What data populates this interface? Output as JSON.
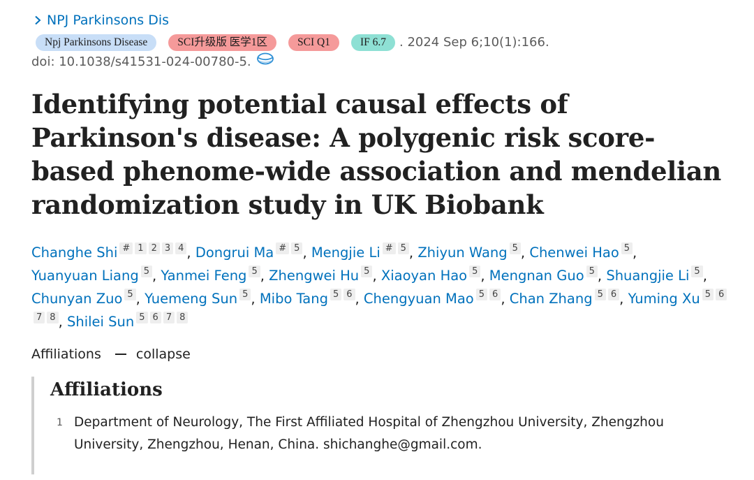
{
  "journal_link": "NPJ Parkinsons Dis",
  "tags": {
    "journal": "Npj Parkinsons Disease",
    "sci_upgrade": "SCI升级版 医学1区",
    "sci_q": "SCI Q1",
    "impact_factor": "IF 6.7"
  },
  "citation": ". 2024 Sep 6;10(1):166.",
  "doi": "doi: 10.1038/s41531-024-00780-5.",
  "title": "Identifying potential causal effects of Parkinson's disease: A polygenic risk score-based phenome-wide association and mendelian randomization study in UK Biobank",
  "authors": [
    {
      "name": "Changhe Shi",
      "refs": [
        "#",
        "1",
        "2",
        "3",
        "4"
      ]
    },
    {
      "name": "Dongrui Ma",
      "refs": [
        "#",
        "5"
      ]
    },
    {
      "name": "Mengjie Li",
      "refs": [
        "#",
        "5"
      ]
    },
    {
      "name": "Zhiyun Wang",
      "refs": [
        "5"
      ]
    },
    {
      "name": "Chenwei Hao",
      "refs": [
        "5"
      ]
    },
    {
      "name": "Yuanyuan Liang",
      "refs": [
        "5"
      ]
    },
    {
      "name": "Yanmei Feng",
      "refs": [
        "5"
      ]
    },
    {
      "name": "Zhengwei Hu",
      "refs": [
        "5"
      ]
    },
    {
      "name": "Xiaoyan Hao",
      "refs": [
        "5"
      ]
    },
    {
      "name": "Mengnan Guo",
      "refs": [
        "5"
      ]
    },
    {
      "name": "Shuangjie Li",
      "refs": [
        "5"
      ]
    },
    {
      "name": "Chunyan Zuo",
      "refs": [
        "5"
      ]
    },
    {
      "name": "Yuemeng Sun",
      "refs": [
        "5"
      ]
    },
    {
      "name": "Mibo Tang",
      "refs": [
        "5",
        "6"
      ]
    },
    {
      "name": "Chengyuan Mao",
      "refs": [
        "5",
        "6"
      ]
    },
    {
      "name": "Chan Zhang",
      "refs": [
        "5",
        "6"
      ]
    },
    {
      "name": "Yuming Xu",
      "refs": [
        "5",
        "6",
        "7",
        "8"
      ]
    },
    {
      "name": "Shilei Sun",
      "refs": [
        "5",
        "6",
        "7",
        "8"
      ]
    }
  ],
  "affiliations_toggle": {
    "label": "Affiliations",
    "action": "collapse"
  },
  "affiliations_panel": {
    "heading": "Affiliations",
    "items": [
      {
        "num": "1",
        "text": "Department of Neurology, The First Affiliated Hospital of Zhengzhou University, Zhengzhou University, Zhengzhou, Henan, China. shichanghe@gmail.com."
      }
    ]
  },
  "colors": {
    "link": "#0071bc",
    "tag_journal": "#c8def7",
    "tag_red": "#f59a9a",
    "tag_teal": "#8ee0d4"
  }
}
